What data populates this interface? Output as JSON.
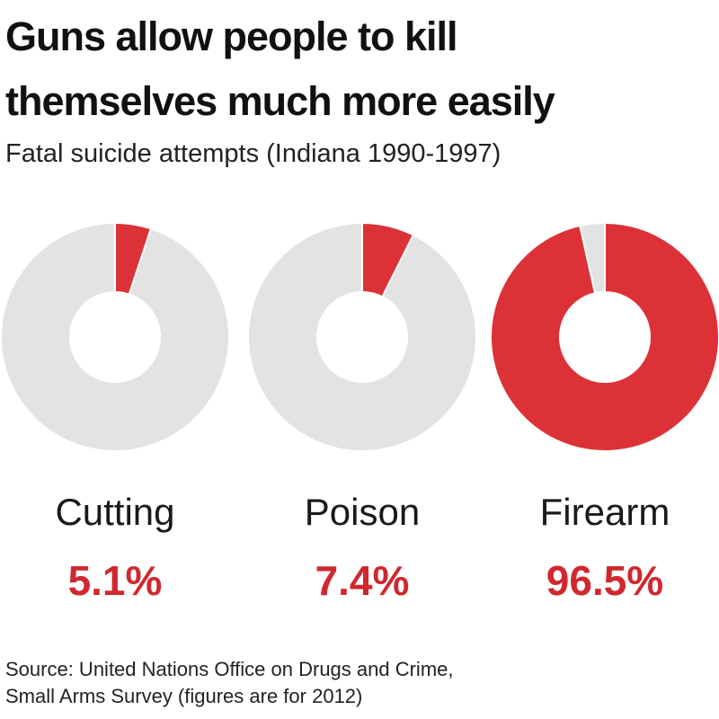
{
  "title": [
    "Guns allow people to kill",
    "themselves much more easily"
  ],
  "subtitle": "Fatal suicide attempts (Indiana 1990-1997)",
  "source": [
    "Source: United Nations Office on Drugs and Crime,",
    "Small Arms Survey (figures are for 2012)"
  ],
  "chart_data": [
    {
      "type": "donut",
      "title": "Cutting",
      "values": [
        5.1,
        94.9
      ],
      "value_labels": [
        "5.1%",
        null
      ],
      "colors": [
        "#dc3237",
        "#e3e3e3"
      ]
    },
    {
      "type": "donut",
      "title": "Poison",
      "values": [
        7.4,
        92.6
      ],
      "value_labels": [
        "7.4%",
        null
      ],
      "colors": [
        "#dc3237",
        "#e3e3e3"
      ]
    },
    {
      "type": "donut",
      "title": "Firearm",
      "values": [
        96.5,
        3.5
      ],
      "value_labels": [
        "96.5%",
        null
      ],
      "colors": [
        "#dc3237",
        "#e3e3e3"
      ]
    }
  ]
}
